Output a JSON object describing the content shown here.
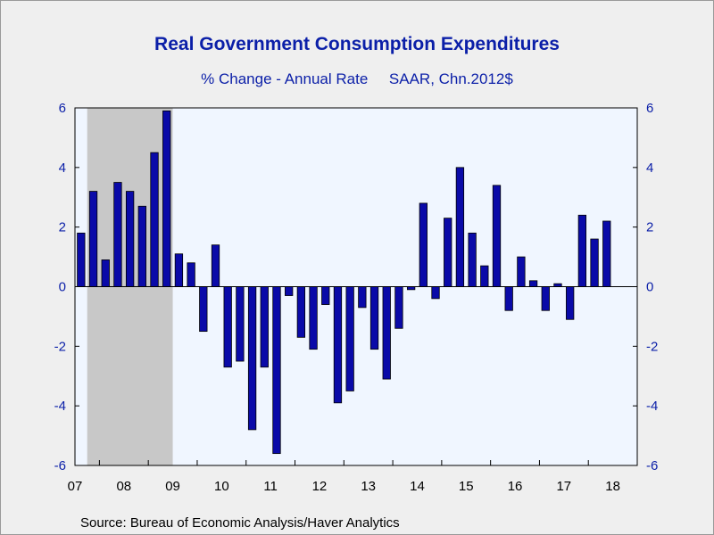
{
  "header": {
    "title": "Real Government Consumption Expenditures",
    "subtitle_left": "% Change - Annual Rate",
    "subtitle_right": "SAAR, Chn.2012$"
  },
  "footer": {
    "source": "Source:  Bureau of Economic Analysis/Haver Analytics"
  },
  "colors": {
    "bar_fill": "#0a0aa8",
    "plot_bg": "#f0f6ff",
    "recession_shade": "#c8c8c8",
    "axis_text": "#0b1fa8"
  },
  "chart_data": {
    "type": "bar",
    "title": "Real Government Consumption Expenditures",
    "subtitle": "% Change - Annual Rate    SAAR, Chn.2012$",
    "ylim": [
      -6,
      6
    ],
    "yticks": [
      -6,
      -4,
      -2,
      0,
      2,
      4,
      6
    ],
    "xtick_labels": [
      "07",
      "08",
      "09",
      "10",
      "11",
      "12",
      "13",
      "14",
      "15",
      "16",
      "17",
      "18"
    ],
    "grid": false,
    "recession_shading": {
      "start": "2007Q4",
      "end": "2009Q2"
    },
    "categories": [
      "2007Q3",
      "2007Q4",
      "2008Q1",
      "2008Q2",
      "2008Q3",
      "2008Q4",
      "2009Q1",
      "2009Q2",
      "2009Q3",
      "2009Q4",
      "2010Q1",
      "2010Q2",
      "2010Q3",
      "2010Q4",
      "2011Q1",
      "2011Q2",
      "2011Q3",
      "2011Q4",
      "2012Q1",
      "2012Q2",
      "2012Q3",
      "2012Q4",
      "2013Q1",
      "2013Q2",
      "2013Q3",
      "2013Q4",
      "2014Q1",
      "2014Q2",
      "2014Q3",
      "2014Q4",
      "2015Q1",
      "2015Q2",
      "2015Q3",
      "2015Q4",
      "2016Q1",
      "2016Q2",
      "2016Q3",
      "2016Q4",
      "2017Q1",
      "2017Q2",
      "2017Q3",
      "2017Q4",
      "2018Q1",
      "2018Q2",
      "2018Q3",
      "2018Q4"
    ],
    "values": [
      1.8,
      3.2,
      0.9,
      3.5,
      3.2,
      2.7,
      4.5,
      5.9,
      1.1,
      0.8,
      -1.5,
      1.4,
      -2.7,
      -2.5,
      -4.8,
      -2.7,
      -5.6,
      -0.3,
      -1.7,
      -2.1,
      -0.6,
      -3.9,
      -3.5,
      -0.7,
      -2.1,
      -3.1,
      -1.4,
      -0.1,
      2.8,
      -0.4,
      2.3,
      4.0,
      1.8,
      0.7,
      3.4,
      -0.8,
      1.0,
      0.2,
      -0.8,
      0.1,
      -1.1,
      2.4,
      1.6,
      2.2,
      null,
      null
    ]
  }
}
